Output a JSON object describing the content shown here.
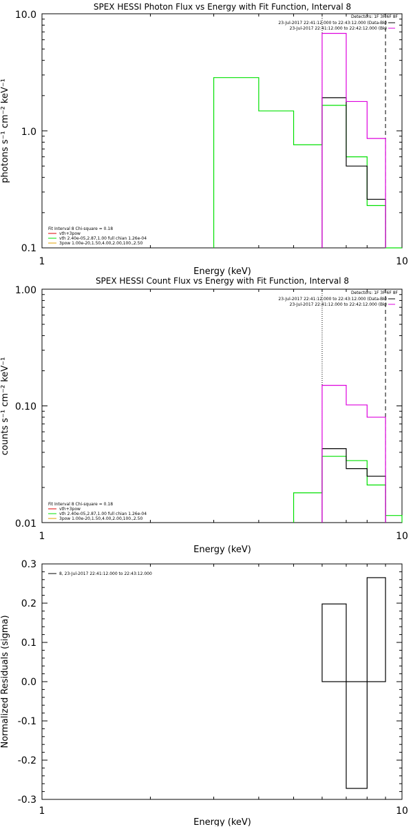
{
  "chart_data": [
    {
      "type": "line",
      "title": "SPEX HESSI Photon Flux vs Energy with Fit Function, Interval 8",
      "xlabel": "Energy (keV)",
      "ylabel": "photons s⁻¹ cm⁻² keV⁻¹",
      "xscale": "log",
      "yscale": "log",
      "xlim": [
        1,
        10
      ],
      "ylim": [
        0.1,
        10
      ],
      "x_ticks": [
        "1",
        "10"
      ],
      "y_ticks": [
        "0.1",
        "1.0",
        "10.0"
      ],
      "legend_right": [
        "Detectors: 1F 3F 6F 8F",
        "23-Jul-2017 22:41:12.000 to 22:43:12.000 (Data-Bk)",
        "23-Jul-2017 22:41:12.000 to 22:42:12.000 (Bk)"
      ],
      "legend_left": [
        "Fit Interval 8   Chi-square = 0.18",
        "vth+3pow",
        "vth 2.40e-05,2.87,1.00  full chian 1.26e-04",
        "3pow 1.00e-20,1.50,4.00,2.00,100.,2.50"
      ],
      "fit_range": [
        6,
        9
      ],
      "series": [
        {
          "name": "vth 2.40e-05,2.87,1.00  full chian 1.26e-04",
          "color": "#00e000",
          "edges": [
            3,
            4,
            5,
            6,
            7,
            8,
            9,
            10
          ],
          "values": [
            2.85,
            1.48,
            0.76,
            1.65,
            0.6,
            0.23,
            0.1
          ]
        },
        {
          "name": "23-Jul-2017 22:41:12.000 to 22:43:12.000 (Data-Bk)",
          "color": "#000000",
          "edges": [
            6,
            7,
            8,
            9
          ],
          "values": [
            1.92,
            0.5,
            0.26
          ]
        },
        {
          "name": "23-Jul-2017 22:41:12.000 to 22:42:12.000 (Bk)",
          "color": "#dd00dd",
          "edges": [
            6,
            7,
            8,
            9
          ],
          "values": [
            6.8,
            1.78,
            0.86
          ]
        }
      ]
    },
    {
      "type": "line",
      "title": "SPEX HESSI Count Flux vs Energy with Fit Function, Interval 8",
      "xlabel": "Energy (keV)",
      "ylabel": "counts s⁻¹ cm⁻² keV⁻¹",
      "xscale": "log",
      "yscale": "log",
      "xlim": [
        1,
        10
      ],
      "ylim": [
        0.01,
        1
      ],
      "x_ticks": [
        "1",
        "10"
      ],
      "y_ticks": [
        "0.01",
        "0.10",
        "1.00"
      ],
      "legend_right": [
        "Detectors: 1F 3F 6F 8F",
        "23-Jul-2017 22:41:12.000 to 22:43:12.000 (Data-Bk)",
        "23-Jul-2017 22:41:12.000 to 22:42:12.000 (Bk)"
      ],
      "legend_left": [
        "Fit Interval 8   Chi-square = 0.18",
        "vth+3pow",
        "vth 2.40e-05,2.87,1.00  full chian 1.26e-04",
        "3pow 1.00e-20,1.50,4.00,2.00,100.,2.50"
      ],
      "fit_range": [
        6,
        9
      ],
      "series": [
        {
          "name": "vth 2.40e-05,2.87,1.00  full chian 1.26e-04",
          "color": "#00e000",
          "edges": [
            5,
            6,
            7,
            8,
            9,
            10
          ],
          "values": [
            0.018,
            0.037,
            0.034,
            0.021,
            0.0115
          ]
        },
        {
          "name": "23-Jul-2017 22:41:12.000 to 22:43:12.000 (Data-Bk)",
          "color": "#000000",
          "edges": [
            6,
            7,
            8,
            9
          ],
          "values": [
            0.043,
            0.029,
            0.025
          ]
        },
        {
          "name": "23-Jul-2017 22:41:12.000 to 22:42:12.000 (Bk)",
          "color": "#dd00dd",
          "edges": [
            6,
            7,
            8,
            9
          ],
          "values": [
            0.15,
            0.102,
            0.08
          ]
        }
      ]
    },
    {
      "type": "bar",
      "title": "",
      "xlabel": "Energy (keV)",
      "ylabel": "Normalized Residuals (sigma)",
      "xscale": "log",
      "xlim": [
        1,
        10
      ],
      "ylim": [
        -0.3,
        0.3
      ],
      "x_ticks": [
        "1",
        "10"
      ],
      "y_ticks": [
        "-0.3",
        "-0.2",
        "-0.1",
        "0.0",
        "0.1",
        "0.2",
        "0.3"
      ],
      "legend": "8, 23-Jul-2017 22:41:12.000 to 22:43:12.000",
      "series": [
        {
          "name": "8, 23-Jul-2017 22:41:12.000 to 22:43:12.000",
          "color": "#000000",
          "edges": [
            6,
            7,
            8,
            9
          ],
          "values": [
            0.198,
            -0.272,
            0.265
          ]
        }
      ]
    }
  ]
}
